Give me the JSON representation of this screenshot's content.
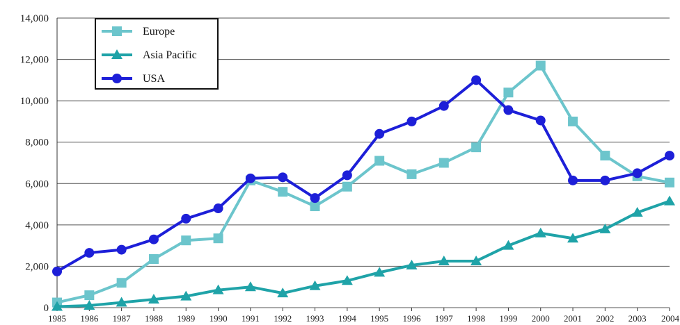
{
  "chart_data": {
    "type": "line",
    "title": "",
    "xlabel": "",
    "ylabel": "",
    "x": [
      "1985",
      "1986",
      "1987",
      "1988",
      "1989",
      "1990",
      "1991",
      "1992",
      "1993",
      "1994",
      "1995",
      "1996",
      "1997",
      "1998",
      "1999",
      "2000",
      "2001",
      "2002",
      "2003",
      "2004"
    ],
    "y_ticks": [
      "0",
      "2,000",
      "4,000",
      "6,000",
      "8,000",
      "10,000",
      "12,000",
      "14,000"
    ],
    "ylim": [
      0,
      14000
    ],
    "grid": "horizontal",
    "legend_position": "top-left",
    "series": [
      {
        "name": "Europe",
        "marker": "square",
        "color": "#6cc5cc",
        "values": [
          250,
          600,
          1200,
          2350,
          3250,
          3350,
          6150,
          5600,
          4900,
          5850,
          7100,
          6450,
          7000,
          7750,
          10400,
          11700,
          9000,
          7350,
          6350,
          6050
        ]
      },
      {
        "name": "Asia Pacific",
        "marker": "triangle",
        "color": "#1fa3a8",
        "values": [
          50,
          100,
          250,
          400,
          550,
          850,
          1000,
          700,
          1050,
          1300,
          1700,
          2050,
          2250,
          2250,
          3000,
          3600,
          3350,
          3800,
          4600,
          5150
        ]
      },
      {
        "name": "USA",
        "marker": "circle",
        "color": "#1d1fd8",
        "values": [
          1750,
          2650,
          2800,
          3300,
          4300,
          4800,
          6250,
          6300,
          5300,
          6400,
          8400,
          9000,
          9750,
          11000,
          9550,
          9050,
          6150,
          6150,
          6500,
          7350
        ]
      }
    ]
  }
}
